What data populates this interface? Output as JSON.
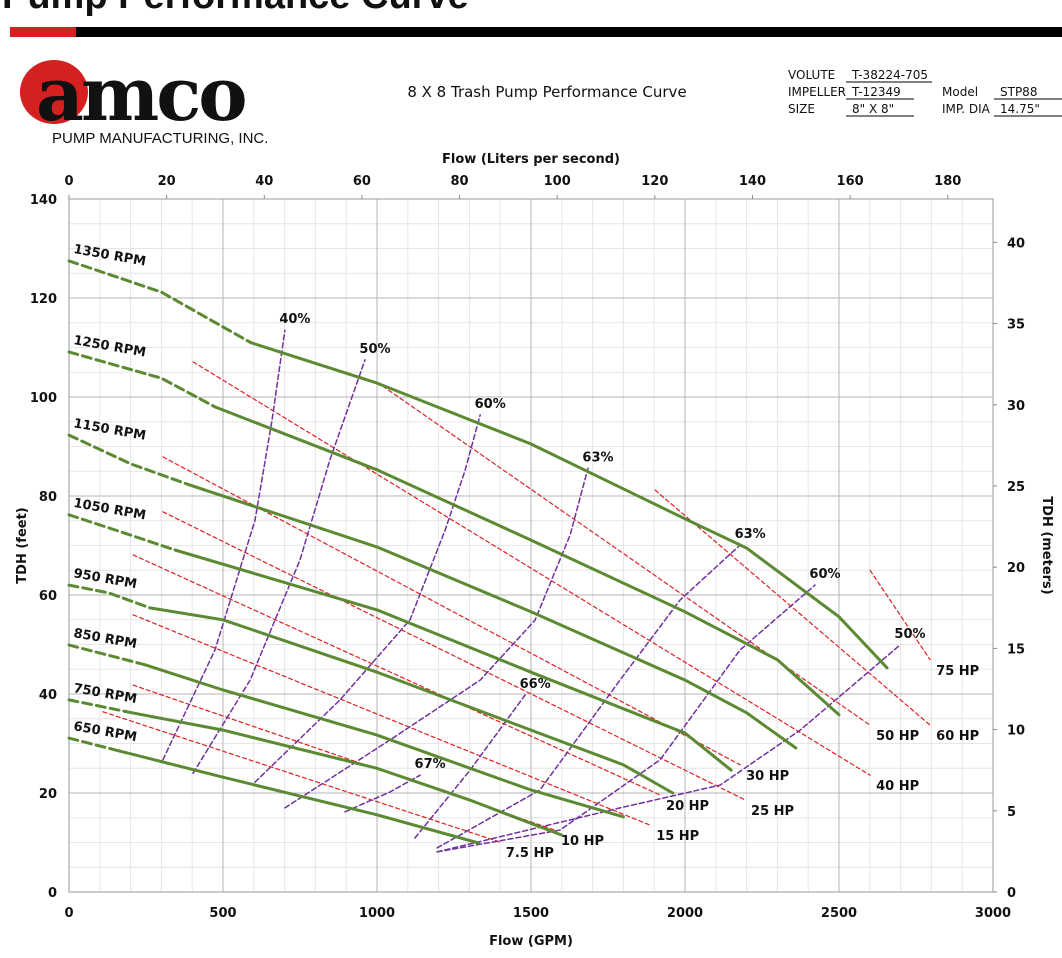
{
  "header": {
    "title": "Pump Performance Curve",
    "logo": "amco",
    "company": "PUMP MANUFACTURING, INC.",
    "chart_title": "8 X 8 Trash Pump Performance Curve",
    "info": [
      {
        "label": "VOLUTE",
        "value": "T-38224-705"
      },
      {
        "label": "IMPELLER",
        "value": "T-12349"
      },
      {
        "label": "SIZE",
        "value": "8\" X 8\""
      },
      {
        "label": "Model",
        "value": "STP88"
      },
      {
        "label": "IMP. DIA",
        "value": "14.75\""
      }
    ]
  },
  "chart_data": {
    "type": "line",
    "x_label": "Flow (GPM)",
    "x2_label": "Flow (Liters per second)",
    "y_label": "TDH (feet)",
    "y2_label": "TDH (meters)",
    "xlim": [
      0,
      3000
    ],
    "xticks": [
      0,
      500,
      1000,
      1500,
      2000,
      2500,
      3000
    ],
    "x2lim": [
      0,
      189.27
    ],
    "x2ticks": [
      0,
      20,
      40,
      60,
      80,
      100,
      120,
      140,
      160,
      180
    ],
    "ylim": [
      0,
      140
    ],
    "yticks": [
      0,
      20,
      40,
      60,
      80,
      100,
      120,
      140
    ],
    "y2lim": [
      0,
      42.67
    ],
    "y2ticks": [
      0,
      5,
      10,
      15,
      20,
      25,
      30,
      35,
      40
    ],
    "grid": true,
    "rpm_curves": [
      {
        "name": "1350 RPM",
        "color": "#5b8a32",
        "dashed_x": [
          0,
          300,
          590
        ],
        "dashed_values": [
          127.5,
          121.2,
          111
        ],
        "x": [
          590,
          1000,
          1500,
          2000,
          2200,
          2500,
          2656
        ],
        "values": [
          111,
          102.8,
          90.5,
          75.4,
          69.5,
          55.6,
          45.3
        ]
      },
      {
        "name": "1250 RPM",
        "color": "#5b8a32",
        "dashed_x": [
          0,
          300,
          474
        ],
        "dashed_values": [
          109.1,
          103.8,
          98
        ],
        "x": [
          474,
          1000,
          1500,
          2000,
          2300,
          2500
        ],
        "values": [
          98,
          85.3,
          71.1,
          56.6,
          46.9,
          35.8
        ]
      },
      {
        "name": "1150 RPM",
        "color": "#5b8a32",
        "dashed_x": [
          0,
          200,
          393
        ],
        "dashed_values": [
          92.3,
          86.5,
          82.2
        ],
        "x": [
          393,
          1000,
          1500,
          2000,
          2200,
          2360
        ],
        "values": [
          82.2,
          69.7,
          56.6,
          42.8,
          36.2,
          29.1
        ]
      },
      {
        "name": "1050 RPM",
        "color": "#5b8a32",
        "dashed_x": [
          0,
          200,
          344
        ],
        "dashed_values": [
          76.2,
          72.1,
          69.1
        ],
        "x": [
          344,
          1000,
          1500,
          2000,
          2150
        ],
        "values": [
          69.1,
          57,
          44.4,
          32.1,
          24.6
        ]
      },
      {
        "name": "950 RPM",
        "color": "#5b8a32",
        "dashed_x": [
          0,
          130,
          263
        ],
        "dashed_values": [
          62,
          60.4,
          57.4
        ],
        "x": [
          263,
          500,
          1000,
          1500,
          1800,
          1960
        ],
        "values": [
          57.4,
          55,
          44.4,
          32.7,
          25.7,
          20
        ]
      },
      {
        "name": "850 RPM",
        "color": "#5b8a32",
        "dashed_x": [
          0,
          247
        ],
        "dashed_values": [
          49.9,
          45.9
        ],
        "x": [
          247,
          500,
          1000,
          1500,
          1800
        ],
        "values": [
          45.9,
          40.8,
          31.7,
          20.6,
          15.2
        ]
      },
      {
        "name": "750 RPM",
        "color": "#5b8a32",
        "dashed_x": [
          0,
          205
        ],
        "dashed_values": [
          38.8,
          36.2
        ],
        "x": [
          205,
          500,
          1000,
          1300,
          1600
        ],
        "values": [
          36.2,
          32.7,
          25,
          18.6,
          11.5
        ]
      },
      {
        "name": "650 RPM",
        "color": "#5b8a32",
        "dashed_x": [
          0,
          150
        ],
        "dashed_values": [
          31.1,
          28.7
        ],
        "x": [
          150,
          500,
          1000,
          1330
        ],
        "values": [
          28.7,
          23.2,
          15.6,
          9.9
        ]
      }
    ],
    "efficiency_curves": [
      {
        "name": "40%",
        "color": "#7030a0",
        "x": [
          305,
          474,
          604,
          659,
          701
        ],
        "values": [
          26.7,
          48.9,
          75.1,
          95.3,
          113.5
        ]
      },
      {
        "name": "50%",
        "color": "#7030a0",
        "x": [
          403,
          588,
          750,
          847,
          961
        ],
        "values": [
          24,
          42.8,
          67.1,
          87.3,
          107.5
        ]
      },
      {
        "name": "60%",
        "color": "#7030a0",
        "x": [
          604,
          880,
          1107,
          1221,
          1286,
          1335
        ],
        "values": [
          22.2,
          38.8,
          55,
          73.1,
          85.2,
          96.4
        ]
      },
      {
        "name": "63%",
        "color": "#7030a0",
        "x": [
          701,
          1042,
          1335,
          1513,
          1627,
          1685
        ],
        "values": [
          17,
          30.7,
          42.8,
          54.9,
          72.1,
          85.6
        ]
      },
      {
        "name": "66%",
        "color": "#7030a0",
        "x": [
          1123,
          1302,
          1481
        ],
        "values": [
          10.9,
          24.6,
          39.8
        ]
      },
      {
        "name": "67%",
        "color": "#7030a0",
        "x": [
          896,
          1042,
          1140
        ],
        "values": [
          16.2,
          20.2,
          23.6
        ]
      },
      {
        "name": "63%",
        "color": "#7030a0",
        "x": [
          1195,
          1529,
          1789,
          1984,
          2179
        ],
        "values": [
          8.9,
          20.6,
          42.8,
          59,
          70.1
        ]
      },
      {
        "name": "60%",
        "color": "#7030a0",
        "x": [
          1195,
          1594,
          1919,
          2179,
          2422
        ],
        "values": [
          8.1,
          12.5,
          26.7,
          48.9,
          62
        ]
      },
      {
        "name": "50%",
        "color": "#7030a0",
        "x": [
          1195,
          1789,
          2114,
          2374,
          2698
        ],
        "values": [
          8.1,
          17,
          21.6,
          32.7,
          49.9
        ]
      }
    ],
    "hp_lines": [
      {
        "name": "7.5 HP",
        "color": "#e02020",
        "x": [
          110,
          1399
        ],
        "values": [
          36.4,
          10.1
        ]
      },
      {
        "name": "10 HP",
        "color": "#e02020",
        "x": [
          208,
          1578
        ],
        "values": [
          41.8,
          12.5
        ]
      },
      {
        "name": "15 HP",
        "color": "#e02020",
        "x": [
          208,
          1887
        ],
        "values": [
          56,
          13.5
        ]
      },
      {
        "name": "20 HP",
        "color": "#e02020",
        "x": [
          208,
          1919
        ],
        "values": [
          68.1,
          19.6
        ]
      },
      {
        "name": "25 HP",
        "color": "#e02020",
        "x": [
          305,
          2195
        ],
        "values": [
          76.8,
          18.6
        ]
      },
      {
        "name": "30 HP",
        "color": "#e02020",
        "x": [
          305,
          2179
        ],
        "values": [
          87.9,
          25.7
        ]
      },
      {
        "name": "40 HP",
        "color": "#e02020",
        "x": [
          403,
          2601
        ],
        "values": [
          107.1,
          23.6
        ]
      },
      {
        "name": "50 HP",
        "color": "#e02020",
        "x": [
          1000,
          2601
        ],
        "values": [
          103,
          33.7
        ]
      },
      {
        "name": "60 HP",
        "color": "#e02020",
        "x": [
          1903,
          2796
        ],
        "values": [
          81.2,
          33.7
        ]
      },
      {
        "name": "75 HP",
        "color": "#e02020",
        "x": [
          2601,
          2796
        ],
        "values": [
          65,
          46.9
        ]
      }
    ]
  }
}
